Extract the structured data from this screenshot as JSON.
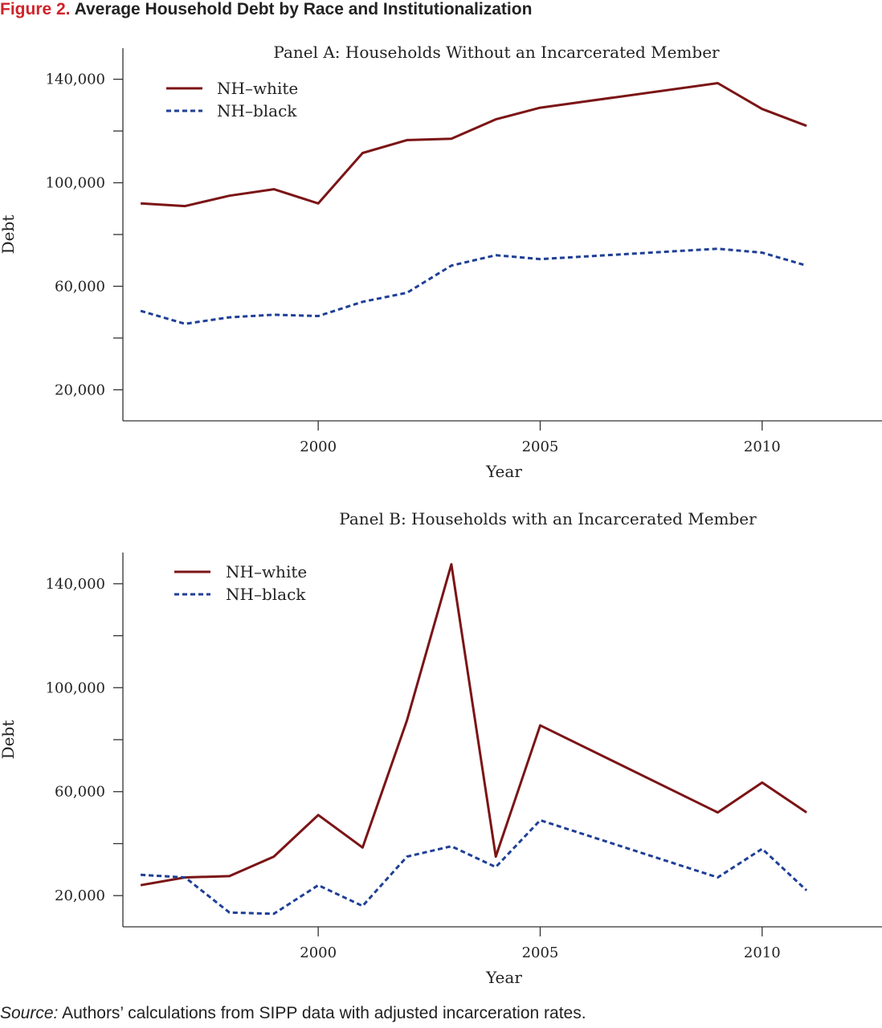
{
  "figure": {
    "label": "Figure 2.",
    "title": "Average Household Debt by Race and Institutionalization"
  },
  "source": {
    "label": "Source:",
    "text": "Authors’ calculations from SIPP data with adjusted incarceration rates."
  },
  "colors": {
    "white": "#7b1416",
    "black": "#1f3f96",
    "axis": "#333333"
  },
  "chart_data": [
    {
      "type": "line",
      "title": "Panel A: Households Without an Incarcerated Member",
      "xlabel": "Year",
      "ylabel": "Debt",
      "xlim": [
        1995.6,
        2012.7
      ],
      "ylim": [
        8000,
        152000
      ],
      "x_ticks": [
        2000,
        2005,
        2010
      ],
      "x_tick_labels": [
        "2000",
        "2005",
        "2010"
      ],
      "y_ticks": [
        20000,
        40000,
        60000,
        80000,
        100000,
        120000,
        140000
      ],
      "y_tick_labels": [
        "20,000",
        "",
        "60,000",
        "",
        "100,000",
        "",
        "140,000"
      ],
      "legend_position": "top-left",
      "series": [
        {
          "name": "NH–white",
          "color": "#7b1416",
          "style": "solid",
          "x": [
            1996,
            1997,
            1998,
            1999,
            2000,
            2001,
            2002,
            2003,
            2004,
            2005,
            2009,
            2010,
            2011
          ],
          "values": [
            92000,
            91000,
            95000,
            97500,
            92000,
            111500,
            116500,
            117000,
            124500,
            129000,
            138500,
            128500,
            122000
          ]
        },
        {
          "name": "NH–black",
          "color": "#1f3f96",
          "style": "dashed",
          "x": [
            1996,
            1997,
            1998,
            1999,
            2000,
            2001,
            2002,
            2003,
            2004,
            2005,
            2009,
            2010,
            2011
          ],
          "values": [
            50500,
            45500,
            48000,
            49000,
            48500,
            54000,
            57500,
            68000,
            72000,
            70500,
            74500,
            73000,
            68000
          ]
        }
      ]
    },
    {
      "type": "line",
      "title": "Panel B: Households with an Incarcerated Member",
      "xlabel": "Year",
      "ylabel": "Debt",
      "xlim": [
        1995.6,
        2012.7
      ],
      "ylim": [
        8000,
        152000
      ],
      "x_ticks": [
        2000,
        2005,
        2010
      ],
      "x_tick_labels": [
        "2000",
        "2005",
        "2010"
      ],
      "y_ticks": [
        20000,
        40000,
        60000,
        80000,
        100000,
        120000,
        140000
      ],
      "y_tick_labels": [
        "20,000",
        "",
        "60,000",
        "",
        "100,000",
        "",
        "140,000"
      ],
      "legend_position": "top-left",
      "series": [
        {
          "name": "NH–white",
          "color": "#7b1416",
          "style": "solid",
          "x": [
            1996,
            1997,
            1998,
            1999,
            2000,
            2001,
            2002,
            2003,
            2004,
            2005,
            2009,
            2010,
            2011
          ],
          "values": [
            24000,
            27000,
            27500,
            35000,
            51000,
            38500,
            87500,
            147500,
            35000,
            85500,
            52000,
            63500,
            52000
          ]
        },
        {
          "name": "NH–black",
          "color": "#1f3f96",
          "style": "dashed",
          "x": [
            1996,
            1997,
            1998,
            1999,
            2000,
            2001,
            2002,
            2003,
            2004,
            2005,
            2009,
            2010,
            2011
          ],
          "values": [
            28000,
            27000,
            13500,
            13000,
            24000,
            16000,
            35000,
            39000,
            31000,
            49000,
            27000,
            38000,
            22000
          ]
        }
      ]
    }
  ]
}
